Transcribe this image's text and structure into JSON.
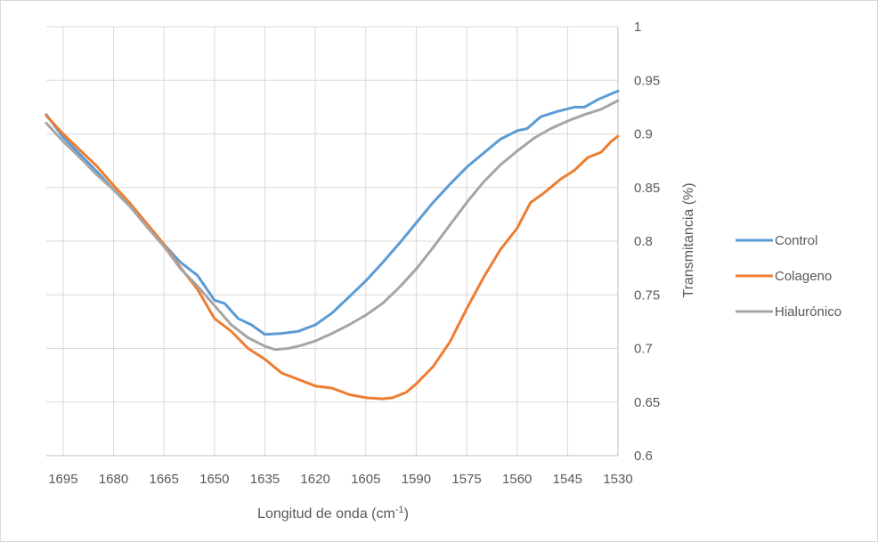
{
  "chart_data": {
    "type": "line",
    "title": "",
    "xlabel": "Longitud de onda (cm",
    "xlabel_sup": "-1",
    "xlabel_close": ")",
    "ylabel": "Transmitancia (%)",
    "xlim": [
      1700,
      1530
    ],
    "ylim": [
      0.6,
      1.0
    ],
    "x_reversed": true,
    "y_axis_side": "right",
    "grid": true,
    "legend_position": "right",
    "x_ticks": [
      "1695",
      "1680",
      "1665",
      "1650",
      "1635",
      "1620",
      "1605",
      "1590",
      "1575",
      "1560",
      "1545",
      "1530"
    ],
    "y_ticks": [
      "0.6",
      "0.65",
      "0.7",
      "0.75",
      "0.8",
      "0.85",
      "0.9",
      "0.95",
      "1"
    ],
    "series": [
      {
        "name": "Control",
        "color": "#5b9bd5",
        "points": [
          [
            1700,
            0.918
          ],
          [
            1695,
            0.897
          ],
          [
            1690,
            0.881
          ],
          [
            1685,
            0.865
          ],
          [
            1680,
            0.848
          ],
          [
            1675,
            0.832
          ],
          [
            1670,
            0.814
          ],
          [
            1665,
            0.797
          ],
          [
            1660,
            0.78
          ],
          [
            1655,
            0.768
          ],
          [
            1650,
            0.745
          ],
          [
            1647,
            0.742
          ],
          [
            1643,
            0.728
          ],
          [
            1639,
            0.722
          ],
          [
            1635,
            0.713
          ],
          [
            1630,
            0.714
          ],
          [
            1625,
            0.716
          ],
          [
            1620,
            0.722
          ],
          [
            1615,
            0.733
          ],
          [
            1610,
            0.748
          ],
          [
            1605,
            0.763
          ],
          [
            1600,
            0.78
          ],
          [
            1595,
            0.798
          ],
          [
            1590,
            0.817
          ],
          [
            1585,
            0.836
          ],
          [
            1580,
            0.853
          ],
          [
            1575,
            0.869
          ],
          [
            1570,
            0.882
          ],
          [
            1565,
            0.895
          ],
          [
            1560,
            0.903
          ],
          [
            1557,
            0.905
          ],
          [
            1553,
            0.916
          ],
          [
            1548,
            0.921
          ],
          [
            1543,
            0.925
          ],
          [
            1540,
            0.925
          ],
          [
            1536,
            0.932
          ],
          [
            1530,
            0.94
          ]
        ]
      },
      {
        "name": "Colageno",
        "color": "#ed7d31",
        "points": [
          [
            1700,
            0.917
          ],
          [
            1695,
            0.9
          ],
          [
            1690,
            0.885
          ],
          [
            1685,
            0.87
          ],
          [
            1680,
            0.852
          ],
          [
            1675,
            0.835
          ],
          [
            1670,
            0.816
          ],
          [
            1665,
            0.797
          ],
          [
            1660,
            0.775
          ],
          [
            1655,
            0.755
          ],
          [
            1650,
            0.728
          ],
          [
            1645,
            0.716
          ],
          [
            1640,
            0.7
          ],
          [
            1635,
            0.69
          ],
          [
            1630,
            0.677
          ],
          [
            1625,
            0.671
          ],
          [
            1620,
            0.665
          ],
          [
            1615,
            0.663
          ],
          [
            1610,
            0.657
          ],
          [
            1605,
            0.654
          ],
          [
            1600,
            0.653
          ],
          [
            1597,
            0.654
          ],
          [
            1593,
            0.659
          ],
          [
            1590,
            0.667
          ],
          [
            1585,
            0.683
          ],
          [
            1580,
            0.706
          ],
          [
            1575,
            0.737
          ],
          [
            1570,
            0.766
          ],
          [
            1565,
            0.792
          ],
          [
            1560,
            0.812
          ],
          [
            1556,
            0.836
          ],
          [
            1552,
            0.845
          ],
          [
            1547,
            0.858
          ],
          [
            1543,
            0.866
          ],
          [
            1539,
            0.878
          ],
          [
            1535,
            0.883
          ],
          [
            1532,
            0.893
          ],
          [
            1530,
            0.898
          ]
        ]
      },
      {
        "name": "Hialurónico",
        "color": "#a5a5a5",
        "points": [
          [
            1700,
            0.91
          ],
          [
            1695,
            0.893
          ],
          [
            1690,
            0.878
          ],
          [
            1685,
            0.862
          ],
          [
            1680,
            0.848
          ],
          [
            1675,
            0.832
          ],
          [
            1670,
            0.813
          ],
          [
            1665,
            0.795
          ],
          [
            1660,
            0.774
          ],
          [
            1655,
            0.758
          ],
          [
            1650,
            0.74
          ],
          [
            1645,
            0.722
          ],
          [
            1640,
            0.71
          ],
          [
            1635,
            0.702
          ],
          [
            1632,
            0.699
          ],
          [
            1628,
            0.7
          ],
          [
            1624,
            0.703
          ],
          [
            1620,
            0.707
          ],
          [
            1615,
            0.714
          ],
          [
            1610,
            0.722
          ],
          [
            1605,
            0.731
          ],
          [
            1600,
            0.742
          ],
          [
            1595,
            0.757
          ],
          [
            1590,
            0.774
          ],
          [
            1585,
            0.794
          ],
          [
            1580,
            0.815
          ],
          [
            1575,
            0.836
          ],
          [
            1570,
            0.855
          ],
          [
            1565,
            0.871
          ],
          [
            1560,
            0.884
          ],
          [
            1555,
            0.896
          ],
          [
            1550,
            0.905
          ],
          [
            1545,
            0.912
          ],
          [
            1540,
            0.918
          ],
          [
            1535,
            0.923
          ],
          [
            1530,
            0.931
          ]
        ]
      }
    ]
  }
}
